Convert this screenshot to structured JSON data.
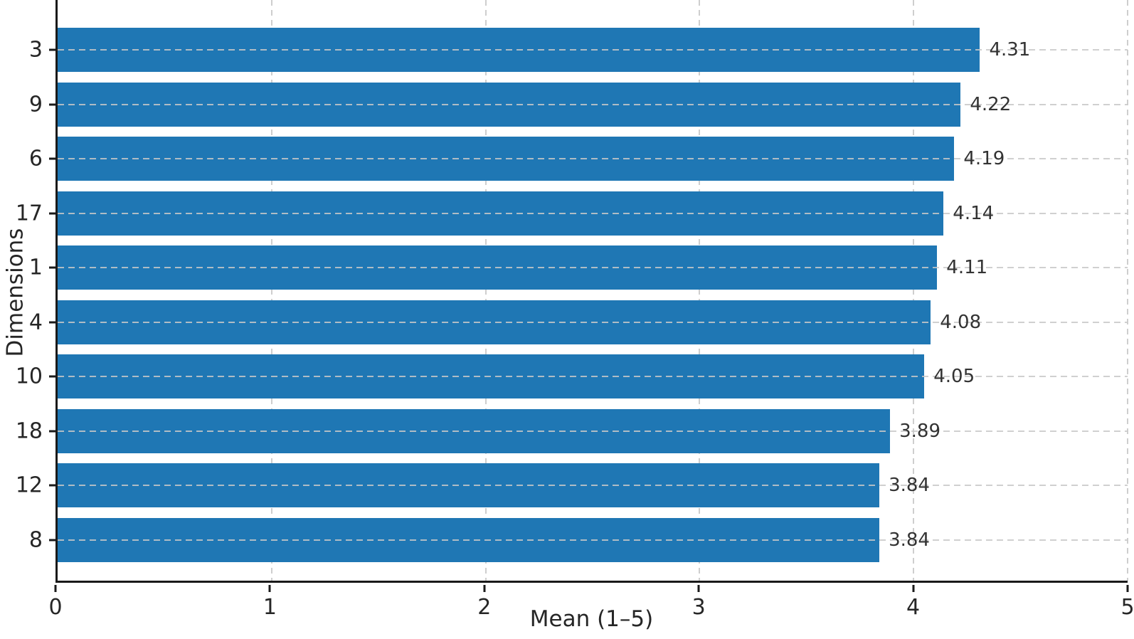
{
  "chart_data": {
    "type": "bar",
    "orientation": "horizontal",
    "title": "",
    "xlabel": "Mean (1–5)",
    "ylabel": "Dimensions",
    "categories": [
      "3",
      "9",
      "6",
      "17",
      "1",
      "4",
      "10",
      "18",
      "12",
      "8"
    ],
    "values": [
      4.31,
      4.22,
      4.19,
      4.14,
      4.11,
      4.08,
      4.05,
      3.89,
      3.84,
      3.84
    ],
    "value_labels": [
      "4.31",
      "4.22",
      "4.19",
      "4.14",
      "4.11",
      "4.08",
      "4.05",
      "3.89",
      "3.84",
      "3.84"
    ],
    "xlim": [
      0,
      5
    ],
    "x_tick_labels": [
      "0",
      "1",
      "2",
      "3",
      "4",
      "5"
    ],
    "x_tick_values": [
      0,
      1,
      2,
      3,
      4,
      5
    ],
    "grid": "dashed gridlines on both axes",
    "legend_position": "none",
    "colors": {
      "bar": "#1f77b4",
      "grid": "#c9c9c9",
      "axis": "#1a1a1a",
      "tick_label": "#262626",
      "value_label": "#333333"
    }
  }
}
